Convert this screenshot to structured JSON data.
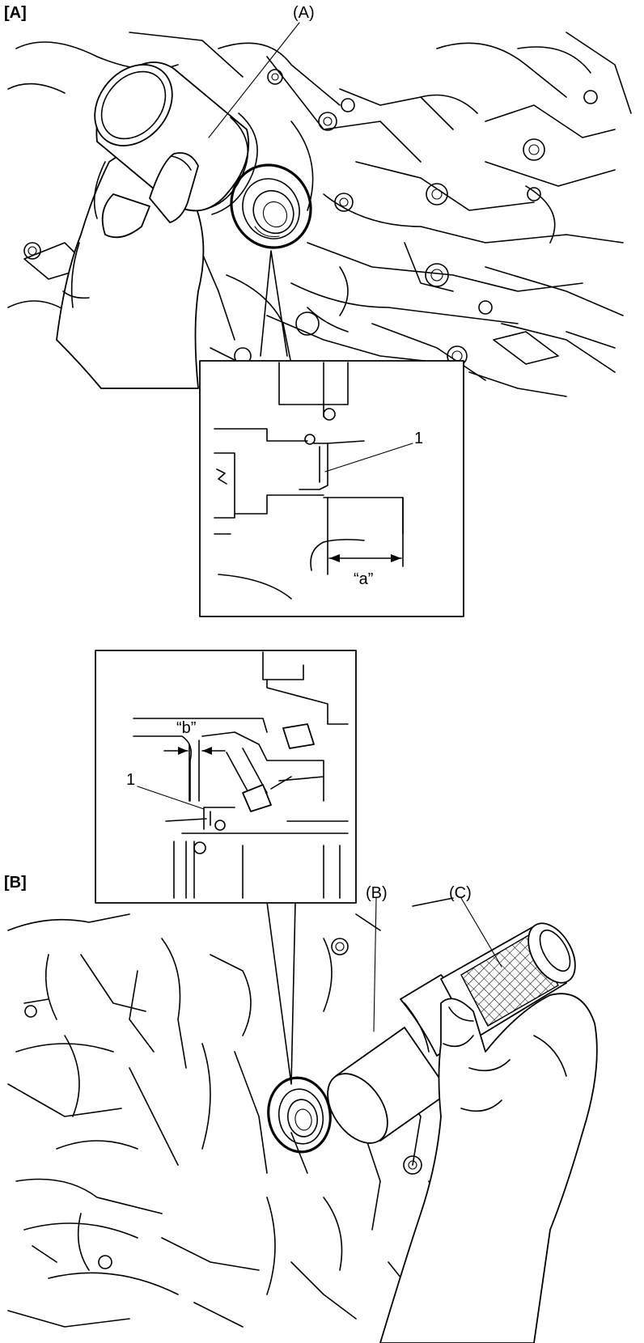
{
  "sections": {
    "a": "[A]",
    "b": "[B]"
  },
  "callouts": {
    "tool_a": "(A)",
    "tool_b": "(B)",
    "tool_c": "(C)",
    "part_1_top": "1",
    "part_1_bottom": "1",
    "dim_a": "“a”",
    "dim_b": "“b”"
  }
}
